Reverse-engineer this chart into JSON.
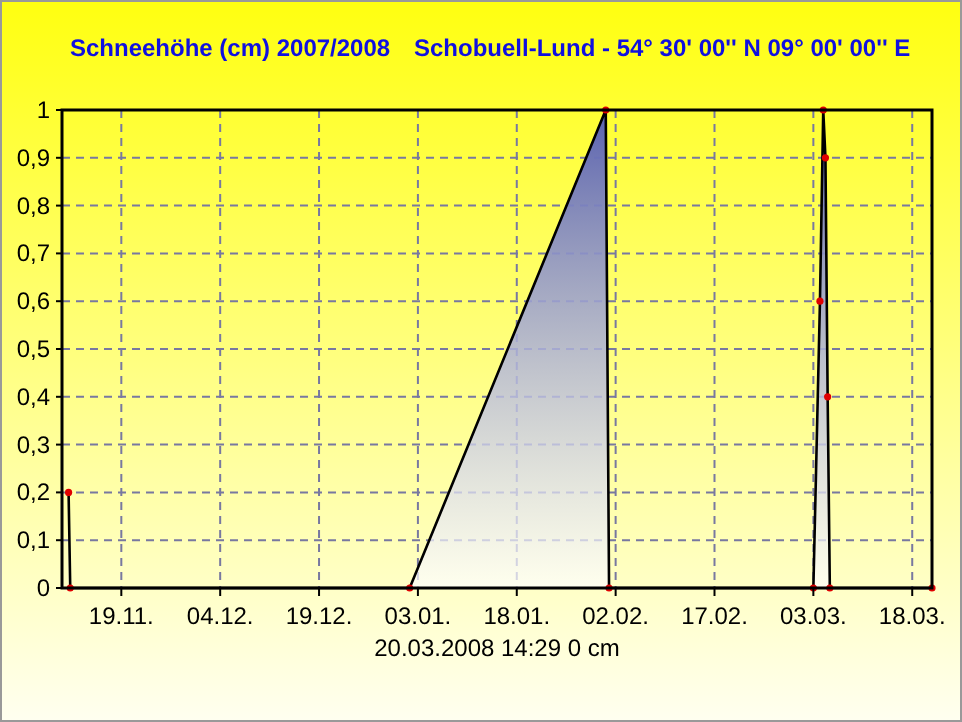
{
  "chart_data": {
    "type": "area",
    "title": "Schneehöhe (cm)  2007/2008",
    "subtitle": "Schobuell-Lund - 54° 30' 00''  N  09° 00' 00'' E",
    "annotations": [
      "20.03.2008  14:29   0 cm"
    ],
    "x": [
      "2007-11-11",
      "2007-11-11T06:00",
      "2008-01-01T18:00",
      "2008-01-31T12:00",
      "2008-02-01",
      "2008-03-03",
      "2008-03-04",
      "2008-03-04T12:00",
      "2008-03-04T20:00",
      "2008-03-05T04:00",
      "2008-03-05T12:00",
      "2008-03-21"
    ],
    "series": [
      {
        "color": "#5a62b0",
        "values": [
          0.2,
          0,
          0,
          1,
          0,
          0,
          0.6,
          1,
          0.9,
          0.4,
          0,
          0
        ]
      }
    ],
    "xlim": [
      "2007-11-10",
      "2008-03-21"
    ],
    "xticks": [
      {
        "value": "2007-11-19",
        "label": "19.11."
      },
      {
        "value": "2007-12-04",
        "label": "04.12."
      },
      {
        "value": "2007-12-19",
        "label": "19.12."
      },
      {
        "value": "2008-01-03",
        "label": "03.01."
      },
      {
        "value": "2008-01-18",
        "label": "18.01."
      },
      {
        "value": "2008-02-02",
        "label": "02.02."
      },
      {
        "value": "2008-02-17",
        "label": "17.02."
      },
      {
        "value": "2008-03-03",
        "label": "03.03."
      },
      {
        "value": "2008-03-18",
        "label": "18.03."
      }
    ],
    "ylim": [
      0,
      1
    ],
    "yticks": [
      0,
      {
        "value": 0.1,
        "label": "0,1"
      },
      {
        "value": 0.2,
        "label": "0,2"
      },
      {
        "value": 0.3,
        "label": "0,3"
      },
      {
        "value": 0.4,
        "label": "0,4"
      },
      {
        "value": 0.5,
        "label": "0,5"
      },
      {
        "value": 0.6,
        "label": "0,6"
      },
      {
        "value": 0.7,
        "label": "0,7"
      },
      {
        "value": 0.8,
        "label": "0,8"
      },
      {
        "value": 0.9,
        "label": "0,9"
      },
      1
    ],
    "grid": true,
    "marker": "circle",
    "line_style": "solid"
  }
}
